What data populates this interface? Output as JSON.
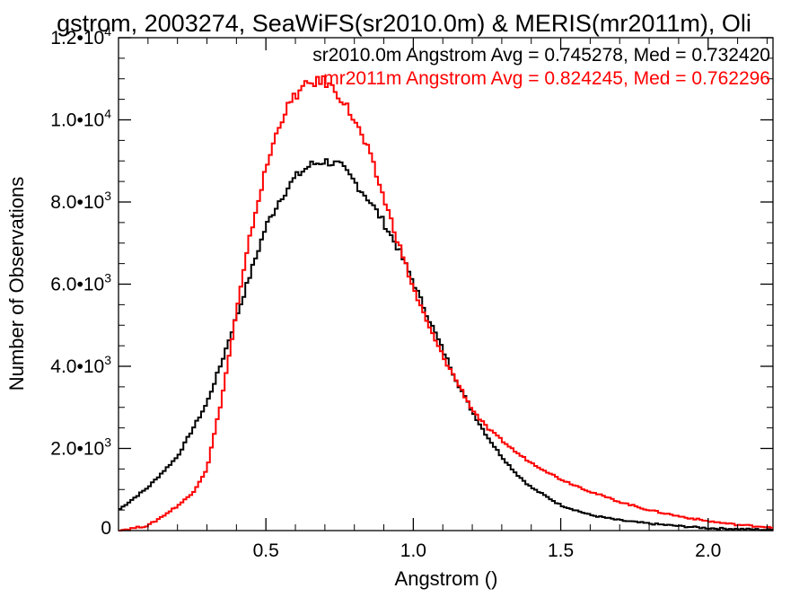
{
  "chart_data": {
    "type": "histogram",
    "title": "gstrom, 2003274, SeaWiFS(sr2010.0m) & MERIS(mr2011m), Oli",
    "xlabel": "Angstrom ()",
    "ylabel": "Number of Observations",
    "xlim": [
      0.0,
      2.22
    ],
    "ylim": [
      0,
      12000
    ],
    "x_ticks": [
      {
        "value": 0.5,
        "label": "0.5"
      },
      {
        "value": 1.0,
        "label": "1.0"
      },
      {
        "value": 1.5,
        "label": "1.5"
      },
      {
        "value": 2.0,
        "label": "2.0"
      }
    ],
    "y_ticks": [
      {
        "value": 0,
        "mantissa": "0",
        "exponent": ""
      },
      {
        "value": 2000,
        "mantissa": "2.0•10",
        "exponent": "3"
      },
      {
        "value": 4000,
        "mantissa": "4.0•10",
        "exponent": "3"
      },
      {
        "value": 6000,
        "mantissa": "6.0•10",
        "exponent": "3"
      },
      {
        "value": 8000,
        "mantissa": "8.0•10",
        "exponent": "3"
      },
      {
        "value": 10000,
        "mantissa": "1.0•10",
        "exponent": "4"
      },
      {
        "value": 12000,
        "mantissa": "1.2•10",
        "exponent": "4"
      }
    ],
    "grid": false,
    "legend_position": "top-right",
    "series": [
      {
        "name": "sr2010.0m",
        "legend": "sr2010.0m Angstrom Avg = 0.745278, Med = 0.732420",
        "color": "#000000",
        "x": [
          0.0,
          0.1,
          0.2,
          0.3,
          0.35,
          0.4,
          0.45,
          0.5,
          0.55,
          0.6,
          0.65,
          0.7,
          0.75,
          0.8,
          0.85,
          0.9,
          0.95,
          1.0,
          1.05,
          1.1,
          1.15,
          1.2,
          1.25,
          1.3,
          1.35,
          1.4,
          1.5,
          1.6,
          1.7,
          1.8,
          1.9,
          2.0,
          2.1,
          2.2
        ],
        "y": [
          500,
          1050,
          1800,
          3100,
          4100,
          5200,
          6300,
          7400,
          8100,
          8600,
          8900,
          9000,
          8900,
          8500,
          8050,
          7500,
          6850,
          6050,
          5200,
          4400,
          3600,
          2900,
          2300,
          1800,
          1380,
          1050,
          620,
          380,
          250,
          170,
          110,
          60,
          40,
          20
        ]
      },
      {
        "name": "mr2011m",
        "legend": "mr2011m Angstrom Avg = 0.824245, Med = 0.762296",
        "color": "#ff0000",
        "x": [
          0.0,
          0.1,
          0.15,
          0.2,
          0.25,
          0.3,
          0.35,
          0.4,
          0.45,
          0.5,
          0.55,
          0.6,
          0.65,
          0.7,
          0.75,
          0.8,
          0.85,
          0.9,
          0.95,
          1.0,
          1.05,
          1.1,
          1.15,
          1.2,
          1.25,
          1.3,
          1.35,
          1.4,
          1.5,
          1.6,
          1.7,
          1.8,
          1.9,
          2.0,
          2.1,
          2.2
        ],
        "y": [
          0,
          120,
          350,
          600,
          900,
          1500,
          3200,
          5300,
          7300,
          8800,
          10000,
          10600,
          10900,
          10950,
          10600,
          10000,
          9200,
          8100,
          7000,
          5900,
          5000,
          4250,
          3600,
          2950,
          2500,
          2200,
          1900,
          1650,
          1250,
          950,
          700,
          500,
          350,
          230,
          140,
          90
        ]
      }
    ]
  }
}
